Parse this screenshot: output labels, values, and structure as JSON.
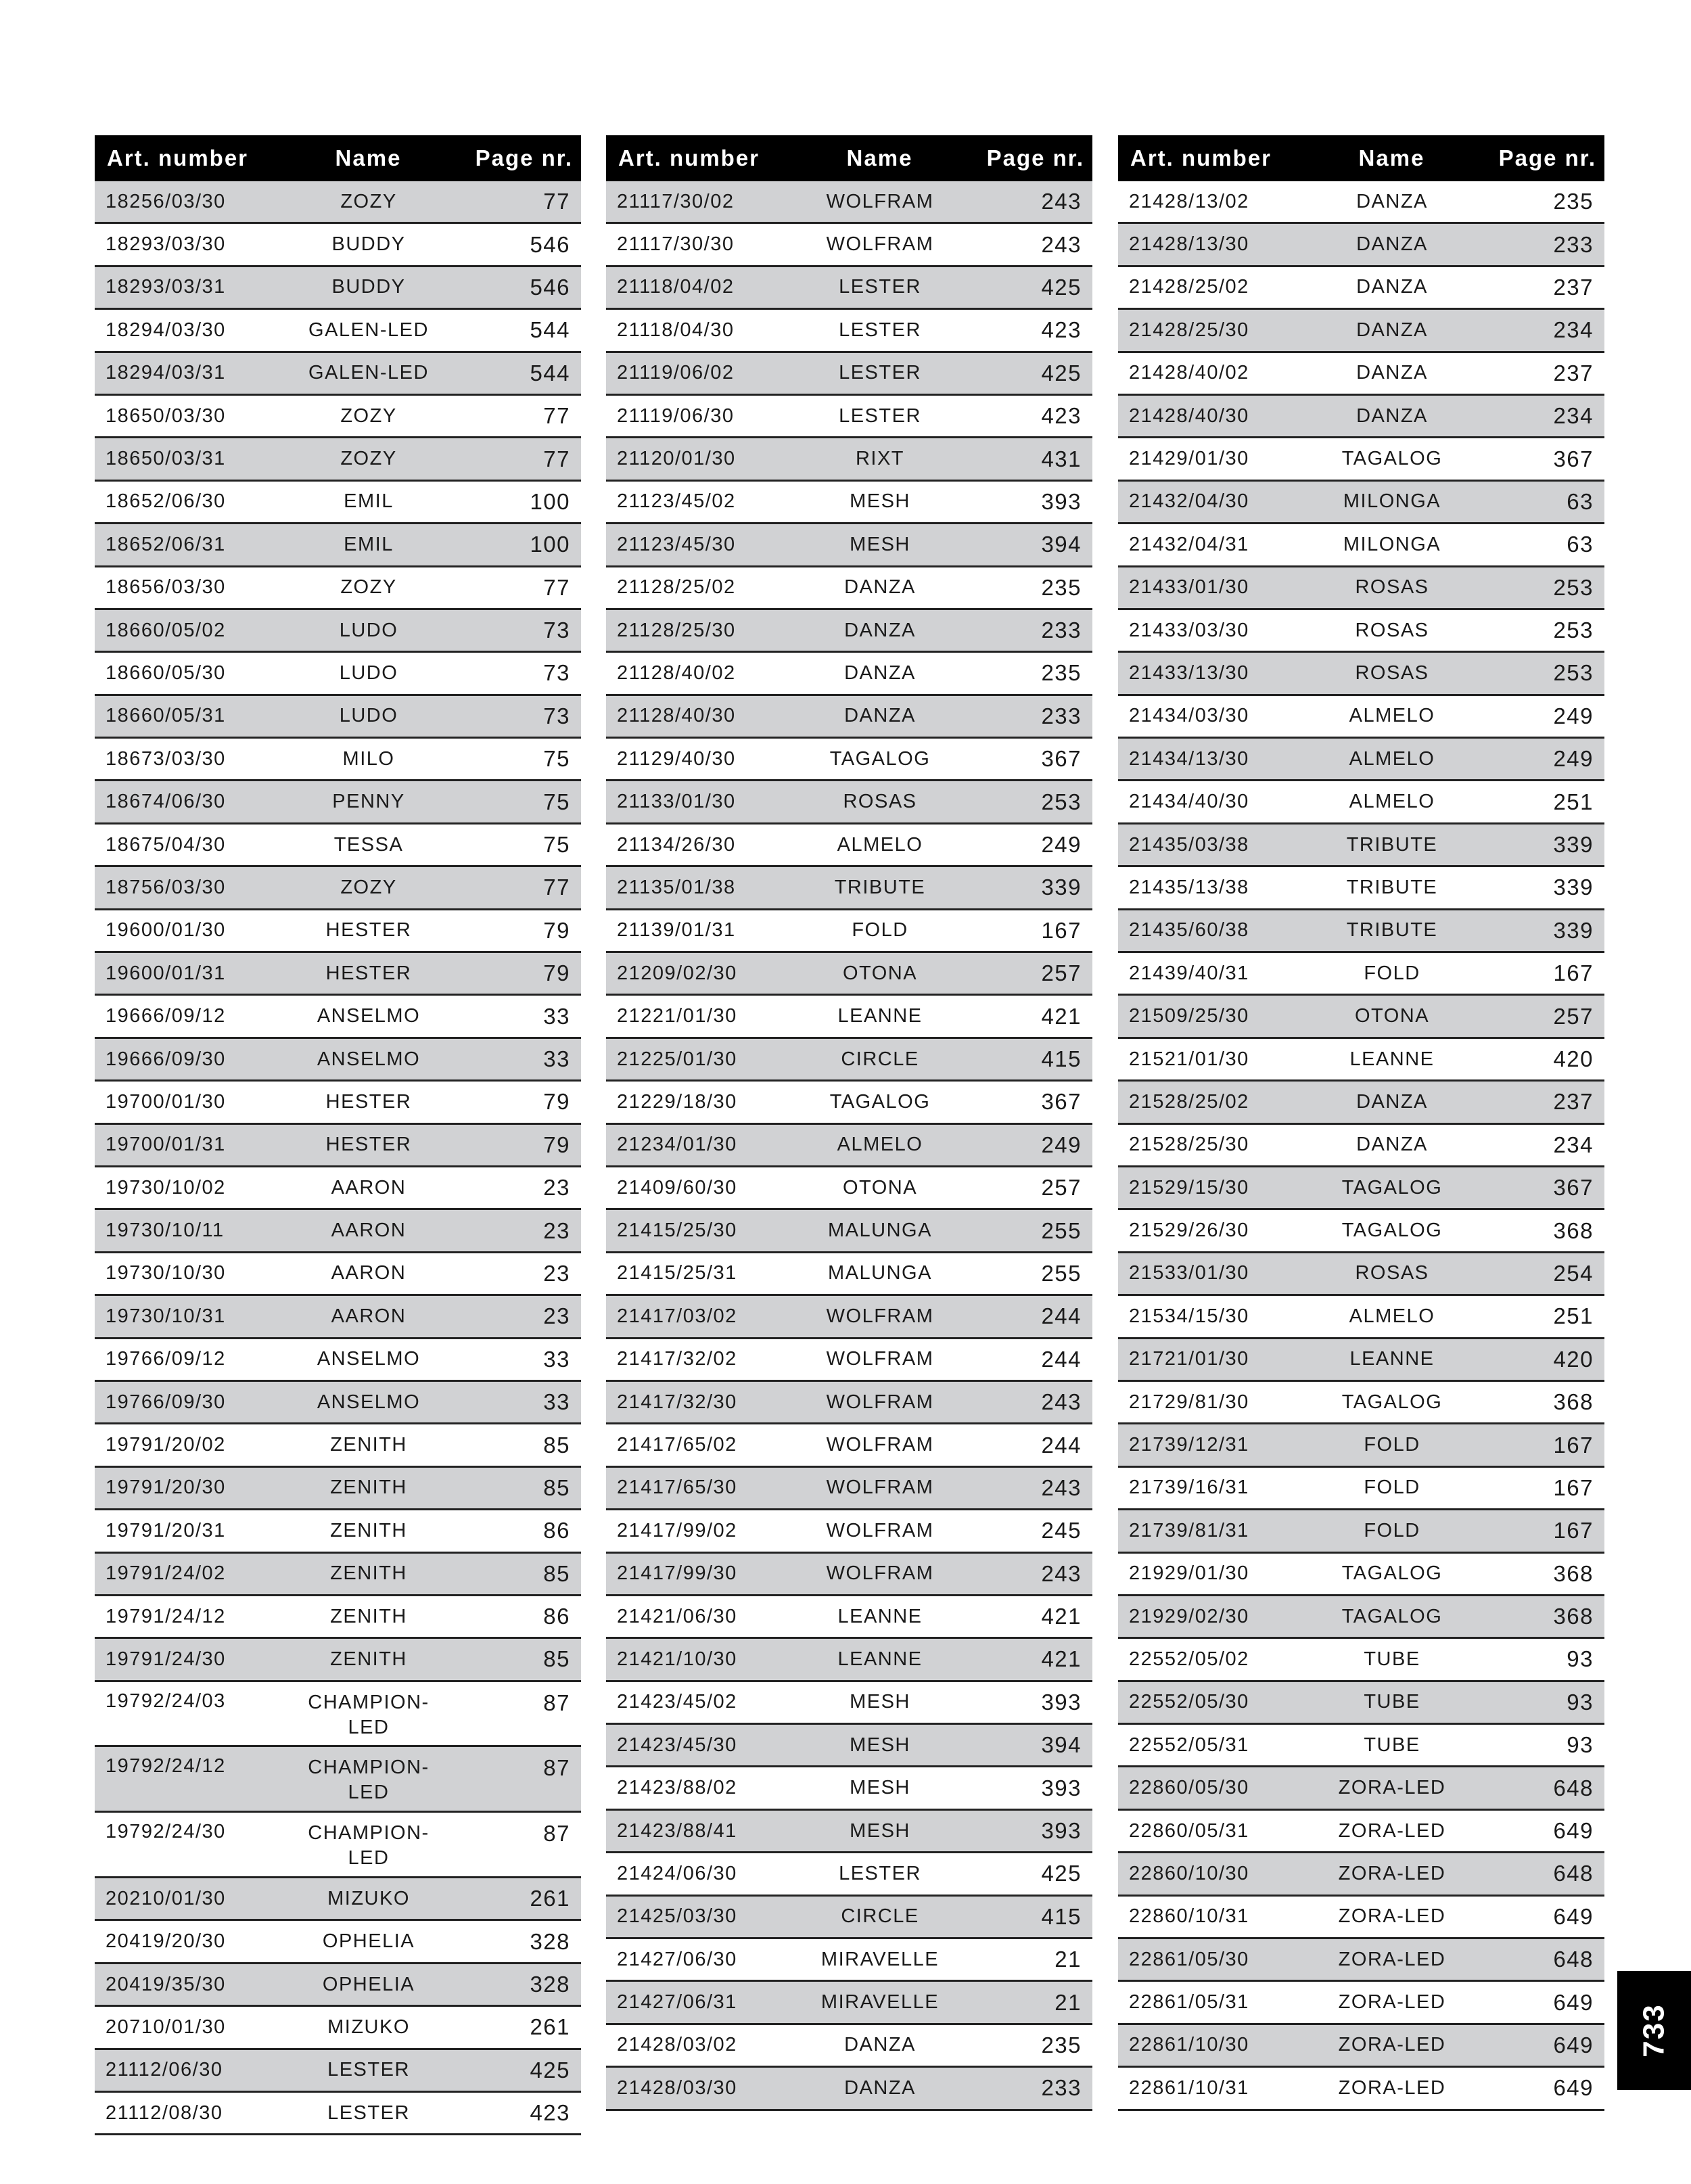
{
  "headers": {
    "art": "Art. number",
    "name": "Name",
    "page": "Page nr."
  },
  "page_number": "733",
  "colors": {
    "header_bg": "#000000",
    "row_shade": "#d1d2d4"
  },
  "columns": [
    [
      [
        "18256/03/30",
        "ZOZY",
        "77"
      ],
      [
        "18293/03/30",
        "BUDDY",
        "546"
      ],
      [
        "18293/03/31",
        "BUDDY",
        "546"
      ],
      [
        "18294/03/30",
        "GALEN-LED",
        "544"
      ],
      [
        "18294/03/31",
        "GALEN-LED",
        "544"
      ],
      [
        "18650/03/30",
        "ZOZY",
        "77"
      ],
      [
        "18650/03/31",
        "ZOZY",
        "77"
      ],
      [
        "18652/06/30",
        "EMIL",
        "100"
      ],
      [
        "18652/06/31",
        "EMIL",
        "100"
      ],
      [
        "18656/03/30",
        "ZOZY",
        "77"
      ],
      [
        "18660/05/02",
        "LUDO",
        "73"
      ],
      [
        "18660/05/30",
        "LUDO",
        "73"
      ],
      [
        "18660/05/31",
        "LUDO",
        "73"
      ],
      [
        "18673/03/30",
        "MILO",
        "75"
      ],
      [
        "18674/06/30",
        "PENNY",
        "75"
      ],
      [
        "18675/04/30",
        "TESSA",
        "75"
      ],
      [
        "18756/03/30",
        "ZOZY",
        "77"
      ],
      [
        "19600/01/30",
        "HESTER",
        "79"
      ],
      [
        "19600/01/31",
        "HESTER",
        "79"
      ],
      [
        "19666/09/12",
        "ANSELMO",
        "33"
      ],
      [
        "19666/09/30",
        "ANSELMO",
        "33"
      ],
      [
        "19700/01/30",
        "HESTER",
        "79"
      ],
      [
        "19700/01/31",
        "HESTER",
        "79"
      ],
      [
        "19730/10/02",
        "AARON",
        "23"
      ],
      [
        "19730/10/11",
        "AARON",
        "23"
      ],
      [
        "19730/10/30",
        "AARON",
        "23"
      ],
      [
        "19730/10/31",
        "AARON",
        "23"
      ],
      [
        "19766/09/12",
        "ANSELMO",
        "33"
      ],
      [
        "19766/09/30",
        "ANSELMO",
        "33"
      ],
      [
        "19791/20/02",
        "ZENITH",
        "85"
      ],
      [
        "19791/20/30",
        "ZENITH",
        "85"
      ],
      [
        "19791/20/31",
        "ZENITH",
        "86"
      ],
      [
        "19791/24/02",
        "ZENITH",
        "85"
      ],
      [
        "19791/24/12",
        "ZENITH",
        "86"
      ],
      [
        "19791/24/30",
        "ZENITH",
        "85"
      ],
      [
        "19792/24/03",
        "CHAMPION-LED",
        "87"
      ],
      [
        "19792/24/12",
        "CHAMPION-LED",
        "87"
      ],
      [
        "19792/24/30",
        "CHAMPION-LED",
        "87"
      ],
      [
        "20210/01/30",
        "MIZUKO",
        "261"
      ],
      [
        "20419/20/30",
        "OPHELIA",
        "328"
      ],
      [
        "20419/35/30",
        "OPHELIA",
        "328"
      ],
      [
        "20710/01/30",
        "MIZUKO",
        "261"
      ],
      [
        "21112/06/30",
        "LESTER",
        "425"
      ],
      [
        "21112/08/30",
        "LESTER",
        "423"
      ]
    ],
    [
      [
        "21117/30/02",
        "WOLFRAM",
        "243"
      ],
      [
        "21117/30/30",
        "WOLFRAM",
        "243"
      ],
      [
        "21118/04/02",
        "LESTER",
        "425"
      ],
      [
        "21118/04/30",
        "LESTER",
        "423"
      ],
      [
        "21119/06/02",
        "LESTER",
        "425"
      ],
      [
        "21119/06/30",
        "LESTER",
        "423"
      ],
      [
        "21120/01/30",
        "RIXT",
        "431"
      ],
      [
        "21123/45/02",
        "MESH",
        "393"
      ],
      [
        "21123/45/30",
        "MESH",
        "394"
      ],
      [
        "21128/25/02",
        "DANZA",
        "235"
      ],
      [
        "21128/25/30",
        "DANZA",
        "233"
      ],
      [
        "21128/40/02",
        "DANZA",
        "235"
      ],
      [
        "21128/40/30",
        "DANZA",
        "233"
      ],
      [
        "21129/40/30",
        "TAGALOG",
        "367"
      ],
      [
        "21133/01/30",
        "ROSAS",
        "253"
      ],
      [
        "21134/26/30",
        "ALMELO",
        "249"
      ],
      [
        "21135/01/38",
        "TRIBUTE",
        "339"
      ],
      [
        "21139/01/31",
        "FOLD",
        "167"
      ],
      [
        "21209/02/30",
        "OTONA",
        "257"
      ],
      [
        "21221/01/30",
        "LEANNE",
        "421"
      ],
      [
        "21225/01/30",
        "CIRCLE",
        "415"
      ],
      [
        "21229/18/30",
        "TAGALOG",
        "367"
      ],
      [
        "21234/01/30",
        "ALMELO",
        "249"
      ],
      [
        "21409/60/30",
        "OTONA",
        "257"
      ],
      [
        "21415/25/30",
        "MALUNGA",
        "255"
      ],
      [
        "21415/25/31",
        "MALUNGA",
        "255"
      ],
      [
        "21417/03/02",
        "WOLFRAM",
        "244"
      ],
      [
        "21417/32/02",
        "WOLFRAM",
        "244"
      ],
      [
        "21417/32/30",
        "WOLFRAM",
        "243"
      ],
      [
        "21417/65/02",
        "WOLFRAM",
        "244"
      ],
      [
        "21417/65/30",
        "WOLFRAM",
        "243"
      ],
      [
        "21417/99/02",
        "WOLFRAM",
        "245"
      ],
      [
        "21417/99/30",
        "WOLFRAM",
        "243"
      ],
      [
        "21421/06/30",
        "LEANNE",
        "421"
      ],
      [
        "21421/10/30",
        "LEANNE",
        "421"
      ],
      [
        "21423/45/02",
        "MESH",
        "393"
      ],
      [
        "21423/45/30",
        "MESH",
        "394"
      ],
      [
        "21423/88/02",
        "MESH",
        "393"
      ],
      [
        "21423/88/41",
        "MESH",
        "393"
      ],
      [
        "21424/06/30",
        "LESTER",
        "425"
      ],
      [
        "21425/03/30",
        "CIRCLE",
        "415"
      ],
      [
        "21427/06/30",
        "MIRAVELLE",
        "21"
      ],
      [
        "21427/06/31",
        "MIRAVELLE",
        "21"
      ],
      [
        "21428/03/02",
        "DANZA",
        "235"
      ],
      [
        "21428/03/30",
        "DANZA",
        "233"
      ]
    ],
    [
      [
        "21428/13/02",
        "DANZA",
        "235"
      ],
      [
        "21428/13/30",
        "DANZA",
        "233"
      ],
      [
        "21428/25/02",
        "DANZA",
        "237"
      ],
      [
        "21428/25/30",
        "DANZA",
        "234"
      ],
      [
        "21428/40/02",
        "DANZA",
        "237"
      ],
      [
        "21428/40/30",
        "DANZA",
        "234"
      ],
      [
        "21429/01/30",
        "TAGALOG",
        "367"
      ],
      [
        "21432/04/30",
        "MILONGA",
        "63"
      ],
      [
        "21432/04/31",
        "MILONGA",
        "63"
      ],
      [
        "21433/01/30",
        "ROSAS",
        "253"
      ],
      [
        "21433/03/30",
        "ROSAS",
        "253"
      ],
      [
        "21433/13/30",
        "ROSAS",
        "253"
      ],
      [
        "21434/03/30",
        "ALMELO",
        "249"
      ],
      [
        "21434/13/30",
        "ALMELO",
        "249"
      ],
      [
        "21434/40/30",
        "ALMELO",
        "251"
      ],
      [
        "21435/03/38",
        "TRIBUTE",
        "339"
      ],
      [
        "21435/13/38",
        "TRIBUTE",
        "339"
      ],
      [
        "21435/60/38",
        "TRIBUTE",
        "339"
      ],
      [
        "21439/40/31",
        "FOLD",
        "167"
      ],
      [
        "21509/25/30",
        "OTONA",
        "257"
      ],
      [
        "21521/01/30",
        "LEANNE",
        "420"
      ],
      [
        "21528/25/02",
        "DANZA",
        "237"
      ],
      [
        "21528/25/30",
        "DANZA",
        "234"
      ],
      [
        "21529/15/30",
        "TAGALOG",
        "367"
      ],
      [
        "21529/26/30",
        "TAGALOG",
        "368"
      ],
      [
        "21533/01/30",
        "ROSAS",
        "254"
      ],
      [
        "21534/15/30",
        "ALMELO",
        "251"
      ],
      [
        "21721/01/30",
        "LEANNE",
        "420"
      ],
      [
        "21729/81/30",
        "TAGALOG",
        "368"
      ],
      [
        "21739/12/31",
        "FOLD",
        "167"
      ],
      [
        "21739/16/31",
        "FOLD",
        "167"
      ],
      [
        "21739/81/31",
        "FOLD",
        "167"
      ],
      [
        "21929/01/30",
        "TAGALOG",
        "368"
      ],
      [
        "21929/02/30",
        "TAGALOG",
        "368"
      ],
      [
        "22552/05/02",
        "TUBE",
        "93"
      ],
      [
        "22552/05/30",
        "TUBE",
        "93"
      ],
      [
        "22552/05/31",
        "TUBE",
        "93"
      ],
      [
        "22860/05/30",
        "ZORA-LED",
        "648"
      ],
      [
        "22860/05/31",
        "ZORA-LED",
        "649"
      ],
      [
        "22860/10/30",
        "ZORA-LED",
        "648"
      ],
      [
        "22860/10/31",
        "ZORA-LED",
        "649"
      ],
      [
        "22861/05/30",
        "ZORA-LED",
        "648"
      ],
      [
        "22861/05/31",
        "ZORA-LED",
        "649"
      ],
      [
        "22861/10/30",
        "ZORA-LED",
        "649"
      ],
      [
        "22861/10/31",
        "ZORA-LED",
        "649"
      ]
    ]
  ]
}
